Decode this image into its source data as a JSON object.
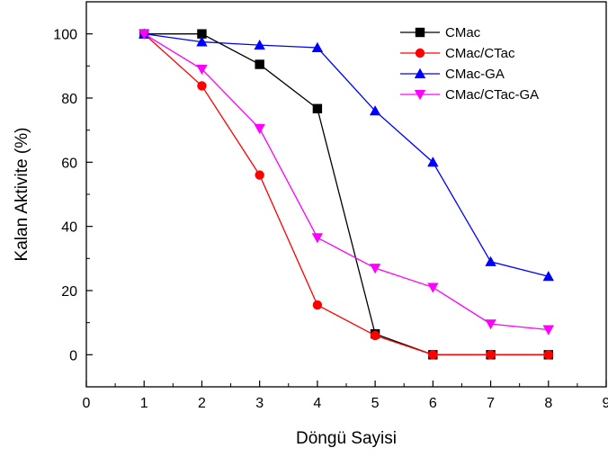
{
  "chart_data": {
    "type": "line",
    "title": "",
    "xlabel": "Döngü Sayisi",
    "ylabel": "Kalan Aktivite (%)",
    "xlim": [
      0,
      9
    ],
    "ylim": [
      -10,
      110
    ],
    "xticks": [
      0,
      1,
      2,
      3,
      4,
      5,
      6,
      7,
      8,
      9
    ],
    "yticks": [
      0,
      20,
      40,
      60,
      80,
      100
    ],
    "grid": false,
    "legend_position": "top-right",
    "x": [
      1,
      2,
      3,
      4,
      5,
      6,
      7,
      8
    ],
    "series": [
      {
        "name": "CMac",
        "color": "#000000",
        "marker": "square",
        "values": [
          100,
          100,
          90.5,
          76.7,
          6.5,
          0,
          0,
          0
        ]
      },
      {
        "name": "CMac/CTac",
        "color": "#ff0000",
        "marker": "circle",
        "values": [
          100,
          83.8,
          56,
          15.5,
          6,
          0,
          0,
          0
        ]
      },
      {
        "name": "CMac-GA",
        "color": "#0000ff",
        "marker": "triangle-up",
        "values": [
          100,
          97.5,
          96.5,
          95.7,
          76,
          60,
          29,
          24.4
        ]
      },
      {
        "name": "CMac/CTac-GA",
        "color": "#ff00ff",
        "marker": "triangle-down",
        "values": [
          100,
          89,
          70.5,
          36.5,
          27,
          21,
          9.6,
          7.8
        ]
      }
    ]
  }
}
